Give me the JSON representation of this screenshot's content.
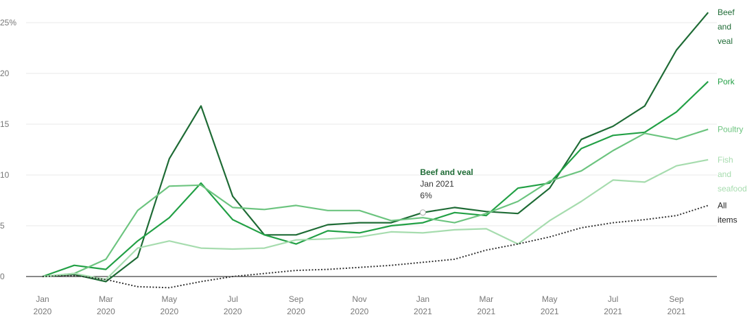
{
  "chart_data": {
    "type": "line",
    "categories": [
      "Jan 2020",
      null,
      "Mar 2020",
      null,
      "May 2020",
      null,
      "Jul 2020",
      null,
      "Sep 2020",
      null,
      "Nov 2020",
      null,
      "Jan 2021",
      null,
      "Mar 2021",
      null,
      "May 2021",
      null,
      "Jul 2021",
      null,
      "Sep 2021",
      null
    ],
    "series": [
      {
        "name": "Beef and veal",
        "color": "#1e6b35",
        "values": [
          0,
          0.2,
          -0.5,
          1.9,
          11.6,
          16.8,
          7.9,
          4.1,
          4.1,
          5.1,
          5.3,
          5.3,
          6.3,
          6.8,
          6.4,
          6.2,
          8.7,
          13.5,
          14.8,
          16.8,
          22.3,
          26
        ]
      },
      {
        "name": "Pork",
        "color": "#22a045",
        "values": [
          0,
          1.1,
          0.7,
          3.5,
          5.8,
          9.2,
          5.6,
          4.1,
          3.2,
          4.5,
          4.3,
          5.0,
          5.3,
          6.3,
          6.0,
          8.7,
          9.2,
          12.6,
          13.9,
          14.2,
          16.2,
          19.2
        ]
      },
      {
        "name": "Poultry",
        "color": "#6cc47f",
        "values": [
          0,
          0.3,
          1.7,
          6.5,
          8.9,
          9.0,
          6.8,
          6.6,
          7.0,
          6.5,
          6.5,
          5.5,
          5.8,
          5.3,
          6.2,
          7.4,
          9.4,
          10.4,
          12.4,
          14.1,
          13.5,
          14.5
        ]
      },
      {
        "name": "Fish and seafood",
        "color": "#a6dcae",
        "values": [
          0,
          0.3,
          -0.3,
          2.8,
          3.5,
          2.8,
          2.7,
          2.8,
          3.6,
          3.7,
          3.9,
          4.4,
          4.3,
          4.6,
          4.7,
          3.2,
          5.5,
          7.4,
          9.5,
          9.3,
          10.9,
          11.5
        ]
      },
      {
        "name": "All items",
        "color": "#333333",
        "dashed": true,
        "values": [
          0,
          0.1,
          -0.3,
          -1.0,
          -1.1,
          -0.5,
          0.0,
          0.3,
          0.6,
          0.7,
          0.9,
          1.1,
          1.4,
          1.7,
          2.6,
          3.2,
          3.9,
          4.8,
          5.3,
          5.6,
          6.0,
          7.0
        ]
      }
    ],
    "annotation": {
      "series": 0,
      "index": 12,
      "title": "Beef and veal",
      "date": "Jan 2021",
      "value": "6%"
    },
    "ylim": [
      -1.5,
      26.2
    ],
    "yticks": [
      0,
      5,
      10,
      15,
      20,
      {
        "value": 25,
        "label": "25%"
      }
    ],
    "grid": true
  }
}
